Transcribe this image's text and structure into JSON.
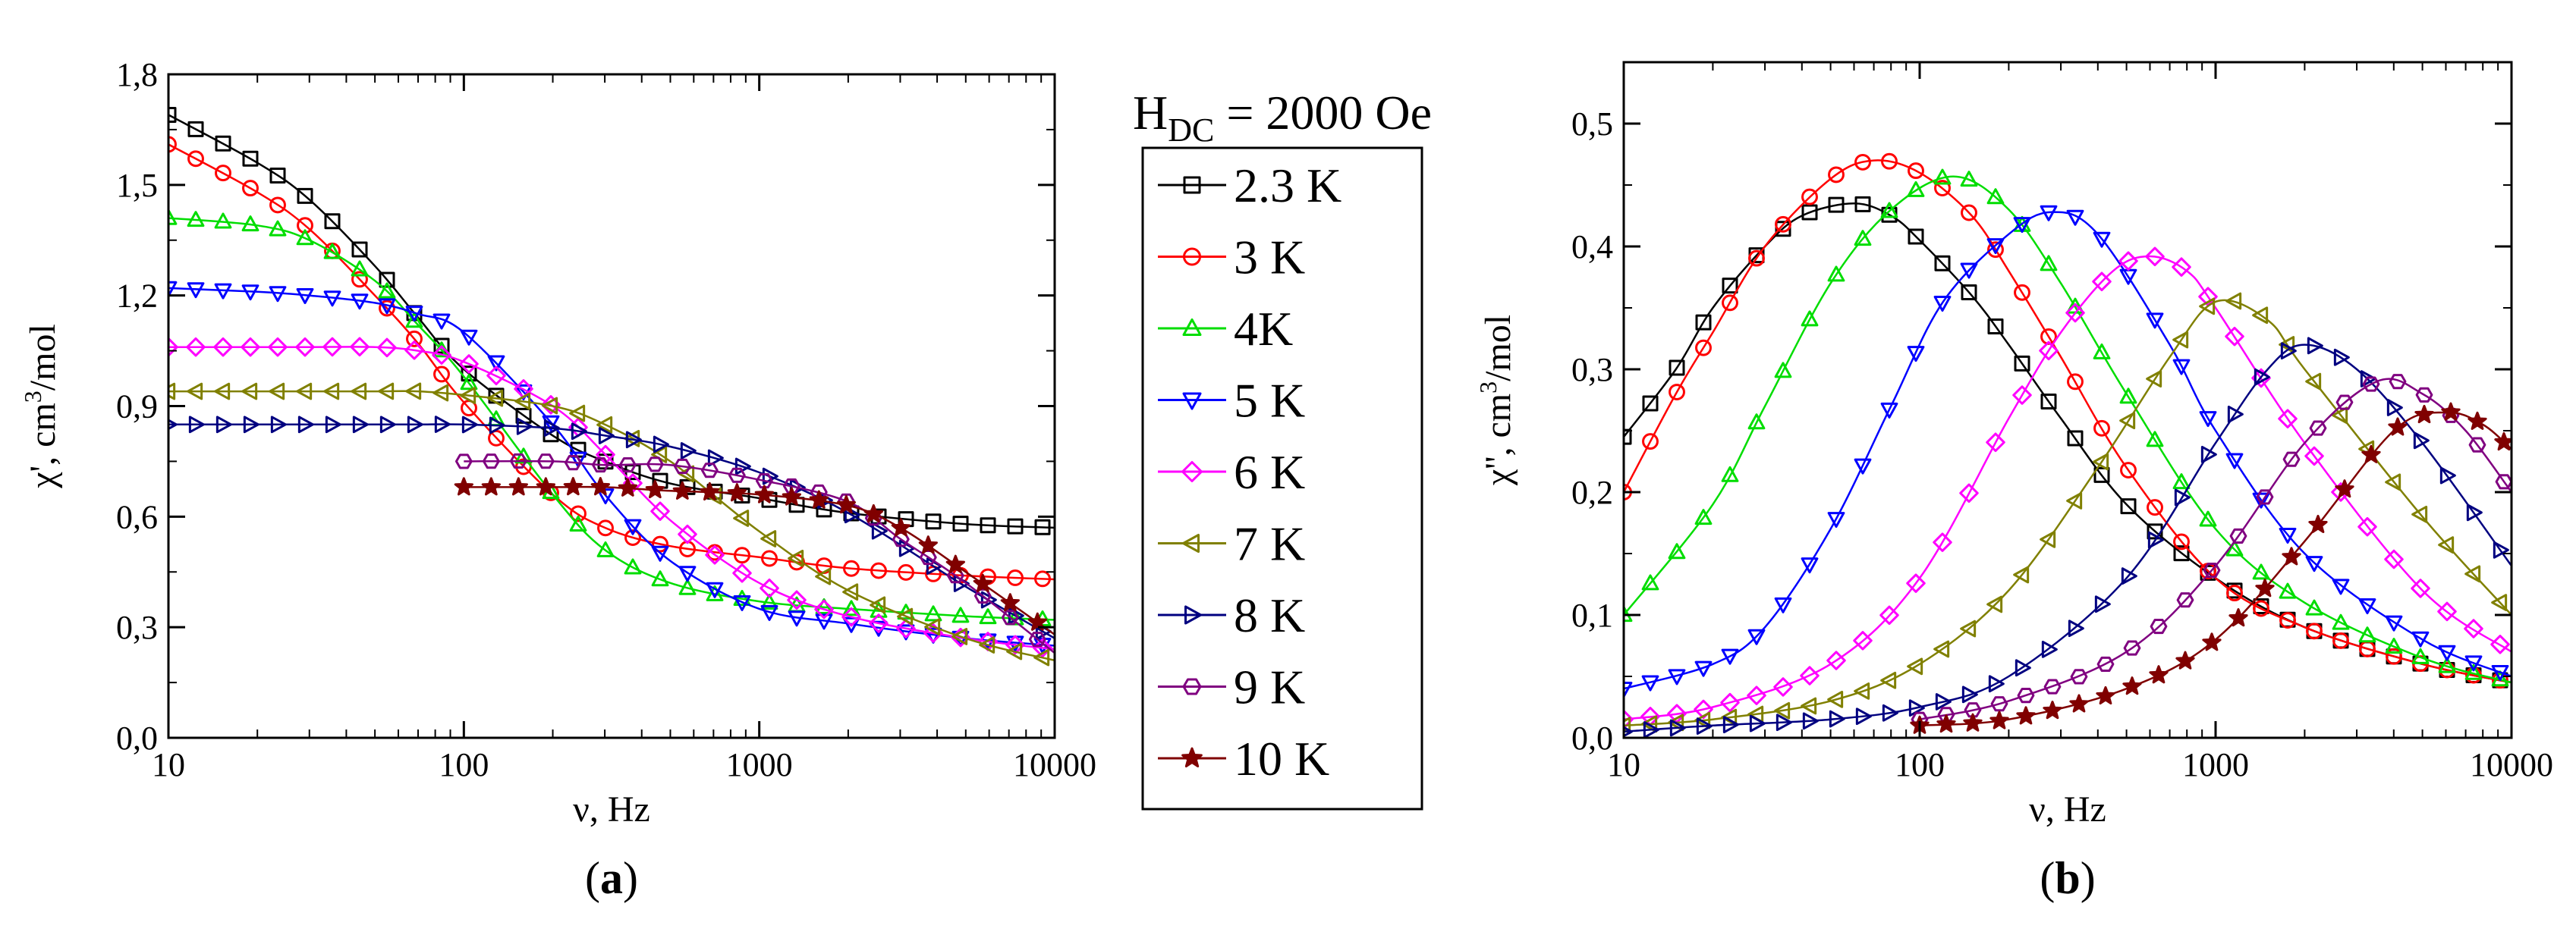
{
  "legend": {
    "title_main": "H",
    "title_sub": "DC",
    "title_rest": " = 2000 Oe",
    "entries": [
      "2.3 K",
      "3 K",
      "4K",
      "5 K",
      "6 K",
      "7 K",
      "8 K",
      "9 K",
      "10 K"
    ]
  },
  "series_style": [
    {
      "color": "#000000",
      "marker": "square"
    },
    {
      "color": "#ff0000",
      "marker": "circle"
    },
    {
      "color": "#00dd00",
      "marker": "triangle-up"
    },
    {
      "color": "#0000ff",
      "marker": "triangle-down"
    },
    {
      "color": "#ff00ff",
      "marker": "diamond"
    },
    {
      "color": "#808000",
      "marker": "triangle-left"
    },
    {
      "color": "#000080",
      "marker": "triangle-right"
    },
    {
      "color": "#800080",
      "marker": "hexagon"
    },
    {
      "color": "#800000",
      "marker": "star"
    }
  ],
  "chart_data": [
    {
      "type": "line",
      "panel_label": "(a)",
      "panel_label_parts": [
        "(",
        "a",
        ")"
      ],
      "title": "",
      "xlabel": "ν, Hz",
      "ylabel_prefix": "χ', cm",
      "ylabel_sup": "3",
      "ylabel_suffix": "/mol",
      "xscale": "log",
      "xlim": [
        10,
        10000
      ],
      "ylim": [
        0,
        1.8
      ],
      "xticks": [
        10,
        100,
        1000,
        10000
      ],
      "xtick_labels": [
        "10",
        "100",
        "1000",
        "10000"
      ],
      "yticks": [
        0,
        0.3,
        0.6,
        0.9,
        1.2,
        1.5,
        1.8
      ],
      "ytick_labels": [
        "0,0",
        "0,3",
        "0,6",
        "0,9",
        "1,2",
        "1,5",
        "1,8"
      ],
      "series": [
        {
          "name": "2.3 K",
          "x": [
            10,
            20,
            30,
            50,
            70,
            100,
            200,
            300,
            500,
            1000,
            2000,
            5000,
            10000
          ],
          "values": [
            1.69,
            1.56,
            1.46,
            1.28,
            1.14,
            1.0,
            0.82,
            0.75,
            0.69,
            0.65,
            0.61,
            0.58,
            0.57
          ]
        },
        {
          "name": "3 K",
          "x": [
            10,
            20,
            30,
            50,
            70,
            100,
            200,
            300,
            500,
            1000,
            2000,
            5000,
            10000
          ],
          "values": [
            1.61,
            1.48,
            1.38,
            1.2,
            1.07,
            0.91,
            0.66,
            0.57,
            0.52,
            0.49,
            0.46,
            0.44,
            0.43
          ]
        },
        {
          "name": "4K",
          "x": [
            10,
            20,
            30,
            50,
            70,
            100,
            200,
            300,
            500,
            1000,
            2000,
            5000,
            10000
          ],
          "values": [
            1.41,
            1.39,
            1.35,
            1.24,
            1.12,
            0.98,
            0.66,
            0.51,
            0.42,
            0.37,
            0.35,
            0.33,
            0.32
          ]
        },
        {
          "name": "5 K",
          "x": [
            10,
            20,
            30,
            50,
            70,
            100,
            200,
            300,
            500,
            1000,
            2000,
            5000,
            10000
          ],
          "values": [
            1.22,
            1.21,
            1.2,
            1.18,
            1.15,
            1.1,
            0.85,
            0.66,
            0.48,
            0.35,
            0.31,
            0.27,
            0.25
          ]
        },
        {
          "name": "6 K",
          "x": [
            10,
            20,
            30,
            50,
            70,
            100,
            200,
            300,
            500,
            1000,
            2000,
            5000,
            10000
          ],
          "values": [
            1.06,
            1.06,
            1.06,
            1.06,
            1.05,
            1.02,
            0.9,
            0.77,
            0.59,
            0.42,
            0.33,
            0.27,
            0.24
          ]
        },
        {
          "name": "7 K",
          "x": [
            10,
            20,
            30,
            50,
            70,
            100,
            200,
            300,
            500,
            1000,
            2000,
            5000,
            10000
          ],
          "values": [
            0.94,
            0.94,
            0.94,
            0.94,
            0.94,
            0.93,
            0.9,
            0.85,
            0.75,
            0.56,
            0.4,
            0.27,
            0.21
          ]
        },
        {
          "name": "8 K",
          "x": [
            10,
            20,
            30,
            50,
            70,
            100,
            200,
            300,
            500,
            1000,
            2000,
            5000,
            10000
          ],
          "values": [
            0.85,
            0.85,
            0.85,
            0.85,
            0.85,
            0.85,
            0.84,
            0.82,
            0.79,
            0.72,
            0.61,
            0.41,
            0.27
          ]
        },
        {
          "name": "9 K",
          "x": [
            100,
            200,
            300,
            500,
            1000,
            2000,
            3000,
            5000,
            10000
          ],
          "values": [
            0.75,
            0.75,
            0.74,
            0.74,
            0.7,
            0.64,
            0.54,
            0.42,
            0.23
          ]
        },
        {
          "name": "10 K",
          "x": [
            100,
            200,
            300,
            500,
            1000,
            2000,
            3000,
            5000,
            10000
          ],
          "values": [
            0.68,
            0.68,
            0.68,
            0.67,
            0.66,
            0.63,
            0.57,
            0.45,
            0.28
          ]
        }
      ]
    },
    {
      "type": "line",
      "panel_label": "(b)",
      "panel_label_parts": [
        "(",
        "b",
        ")"
      ],
      "title": "",
      "xlabel": "ν, Hz",
      "ylabel_prefix": "χ'', cm",
      "ylabel_sup": "3",
      "ylabel_suffix": "/mol",
      "xscale": "log",
      "xlim": [
        10,
        10000
      ],
      "ylim": [
        0,
        0.55
      ],
      "xticks": [
        10,
        100,
        1000,
        10000
      ],
      "xtick_labels": [
        "10",
        "100",
        "1000",
        "10000"
      ],
      "yticks": [
        0,
        0.1,
        0.2,
        0.3,
        0.4,
        0.5
      ],
      "ytick_labels": [
        "0,0",
        "0,1",
        "0,2",
        "0,3",
        "0,4",
        "0,5"
      ],
      "series": [
        {
          "name": "2.3 K",
          "x": [
            10,
            15,
            20,
            30,
            40,
            60,
            80,
            100,
            150,
            200,
            300,
            500,
            1000,
            2000,
            5000,
            10000
          ],
          "values": [
            0.245,
            0.3,
            0.35,
            0.4,
            0.425,
            0.435,
            0.425,
            0.405,
            0.36,
            0.32,
            0.26,
            0.19,
            0.13,
            0.09,
            0.06,
            0.045
          ]
        },
        {
          "name": "3 K",
          "x": [
            10,
            15,
            20,
            30,
            50,
            70,
            100,
            150,
            200,
            300,
            500,
            1000,
            2000,
            5000,
            10000
          ],
          "values": [
            0.2,
            0.28,
            0.33,
            0.4,
            0.455,
            0.47,
            0.46,
            0.425,
            0.38,
            0.31,
            0.22,
            0.13,
            0.09,
            0.06,
            0.045
          ]
        },
        {
          "name": "4K",
          "x": [
            10,
            20,
            30,
            50,
            80,
            130,
            200,
            300,
            500,
            1000,
            2000,
            5000,
            10000
          ],
          "values": [
            0.1,
            0.19,
            0.27,
            0.37,
            0.43,
            0.457,
            0.43,
            0.37,
            0.28,
            0.17,
            0.11,
            0.065,
            0.045
          ]
        },
        {
          "name": "5 K",
          "x": [
            10,
            20,
            30,
            50,
            80,
            120,
            200,
            280,
            400,
            700,
            1000,
            2000,
            5000,
            10000
          ],
          "values": [
            0.04,
            0.06,
            0.09,
            0.17,
            0.27,
            0.355,
            0.41,
            0.428,
            0.41,
            0.32,
            0.25,
            0.15,
            0.08,
            0.05
          ]
        },
        {
          "name": "6 K",
          "x": [
            10,
            20,
            50,
            100,
            200,
            300,
            450,
            600,
            800,
            1000,
            2000,
            5000,
            10000
          ],
          "values": [
            0.015,
            0.025,
            0.06,
            0.13,
            0.26,
            0.33,
            0.38,
            0.392,
            0.38,
            0.35,
            0.24,
            0.12,
            0.07
          ]
        },
        {
          "name": "7 K",
          "x": [
            10,
            20,
            50,
            100,
            200,
            400,
            700,
            1000,
            1500,
            2000,
            5000,
            10000
          ],
          "values": [
            0.01,
            0.015,
            0.03,
            0.06,
            0.12,
            0.22,
            0.31,
            0.355,
            0.34,
            0.3,
            0.18,
            0.1
          ]
        },
        {
          "name": "8 K",
          "x": [
            10,
            20,
            50,
            100,
            200,
            500,
            1000,
            1500,
            2000,
            3000,
            5000,
            10000
          ],
          "values": [
            0.005,
            0.01,
            0.015,
            0.025,
            0.05,
            0.13,
            0.24,
            0.3,
            0.32,
            0.3,
            0.24,
            0.14
          ]
        },
        {
          "name": "9 K",
          "x": [
            100,
            200,
            500,
            1000,
            2000,
            3500,
            5000,
            7000,
            10000
          ],
          "values": [
            0.015,
            0.03,
            0.07,
            0.14,
            0.24,
            0.29,
            0.28,
            0.25,
            0.2
          ]
        },
        {
          "name": "10 K",
          "x": [
            100,
            200,
            500,
            1000,
            2000,
            4000,
            6000,
            8000,
            10000
          ],
          "values": [
            0.01,
            0.015,
            0.04,
            0.08,
            0.16,
            0.25,
            0.265,
            0.255,
            0.235
          ]
        }
      ]
    }
  ]
}
